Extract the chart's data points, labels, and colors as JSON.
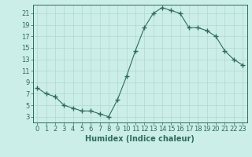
{
  "x": [
    0,
    1,
    2,
    3,
    4,
    5,
    6,
    7,
    8,
    9,
    10,
    11,
    12,
    13,
    14,
    15,
    16,
    17,
    18,
    19,
    20,
    21,
    22,
    23
  ],
  "y": [
    8,
    7,
    6.5,
    5,
    4.5,
    4,
    4,
    3.5,
    3,
    6,
    10,
    14.5,
    18.5,
    21,
    22,
    21.5,
    21,
    18.5,
    18.5,
    18,
    17,
    14.5,
    13,
    12
  ],
  "line_color": "#2e6b5e",
  "marker": "+",
  "marker_size": 4,
  "bg_color": "#cceee8",
  "grid_color": "#b0d8d0",
  "xlabel": "Humidex (Indice chaleur)",
  "xlim": [
    -0.5,
    23.5
  ],
  "ylim": [
    2,
    22.5
  ],
  "yticks": [
    3,
    5,
    7,
    9,
    11,
    13,
    15,
    17,
    19,
    21
  ],
  "xticks": [
    0,
    1,
    2,
    3,
    4,
    5,
    6,
    7,
    8,
    9,
    10,
    11,
    12,
    13,
    14,
    15,
    16,
    17,
    18,
    19,
    20,
    21,
    22,
    23
  ],
  "tick_color": "#2e6b5e",
  "label_fontsize": 6,
  "xlabel_fontsize": 7
}
